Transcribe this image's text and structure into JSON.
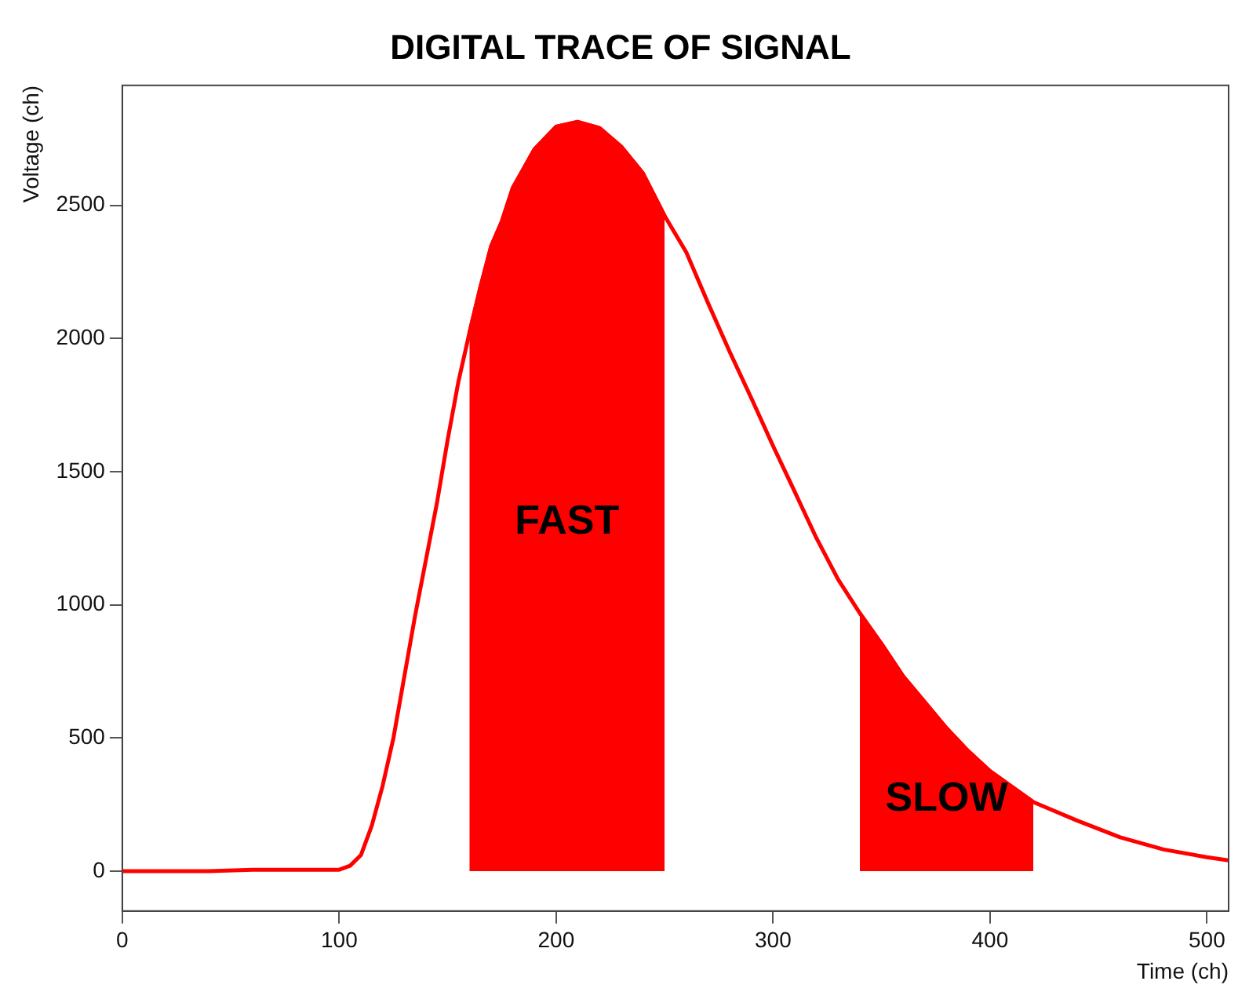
{
  "chart_data": {
    "type": "line",
    "title": "DIGITAL TRACE OF SIGNAL",
    "xlabel": "Time (ch)",
    "ylabel": "Voltage (ch)",
    "xlim": [
      0,
      510
    ],
    "xticks": [
      0,
      100,
      200,
      300,
      400,
      500
    ],
    "ylim": [
      -150,
      2950
    ],
    "yticks": [
      0,
      500,
      1000,
      1500,
      2000,
      2500
    ],
    "grid": false,
    "legend": false,
    "marker": "none",
    "line_style": "solid",
    "series": [
      {
        "color": "#ff0000",
        "x": [
          0,
          20,
          40,
          60,
          80,
          100,
          105,
          110,
          115,
          120,
          125,
          130,
          135,
          140,
          145,
          150,
          155,
          160,
          165,
          170,
          175,
          180,
          190,
          200,
          210,
          220,
          230,
          240,
          250,
          260,
          270,
          280,
          290,
          300,
          310,
          320,
          330,
          340,
          350,
          360,
          370,
          380,
          390,
          400,
          410,
          420,
          440,
          460,
          480,
          500,
          510
        ],
        "values": [
          0,
          0,
          0,
          5,
          5,
          5,
          20,
          60,
          170,
          320,
          500,
          730,
          960,
          1170,
          1380,
          1620,
          1840,
          2020,
          2190,
          2345,
          2440,
          2565,
          2710,
          2795,
          2813,
          2790,
          2720,
          2620,
          2460,
          2323,
          2133,
          1950,
          1775,
          1596,
          1424,
          1250,
          1095,
          968,
          853,
          731,
          634,
          536,
          450,
          375,
          317,
          259,
          190,
          127,
          81,
          52,
          40
        ]
      },
      {
        "type": "area",
        "name": "FAST",
        "color": "#ff0000",
        "x": [
          160,
          165,
          170,
          175,
          180,
          190,
          200,
          210,
          220,
          230,
          240,
          250
        ],
        "values": [
          2020,
          2190,
          2345,
          2440,
          2565,
          2710,
          2795,
          2813,
          2790,
          2720,
          2620,
          2460
        ]
      },
      {
        "type": "area",
        "name": "SLOW",
        "color": "#ff0000",
        "x": [
          340,
          350,
          360,
          370,
          380,
          390,
          400,
          410,
          420
        ],
        "values": [
          968,
          853,
          731,
          634,
          536,
          450,
          375,
          317,
          259
        ]
      }
    ]
  }
}
